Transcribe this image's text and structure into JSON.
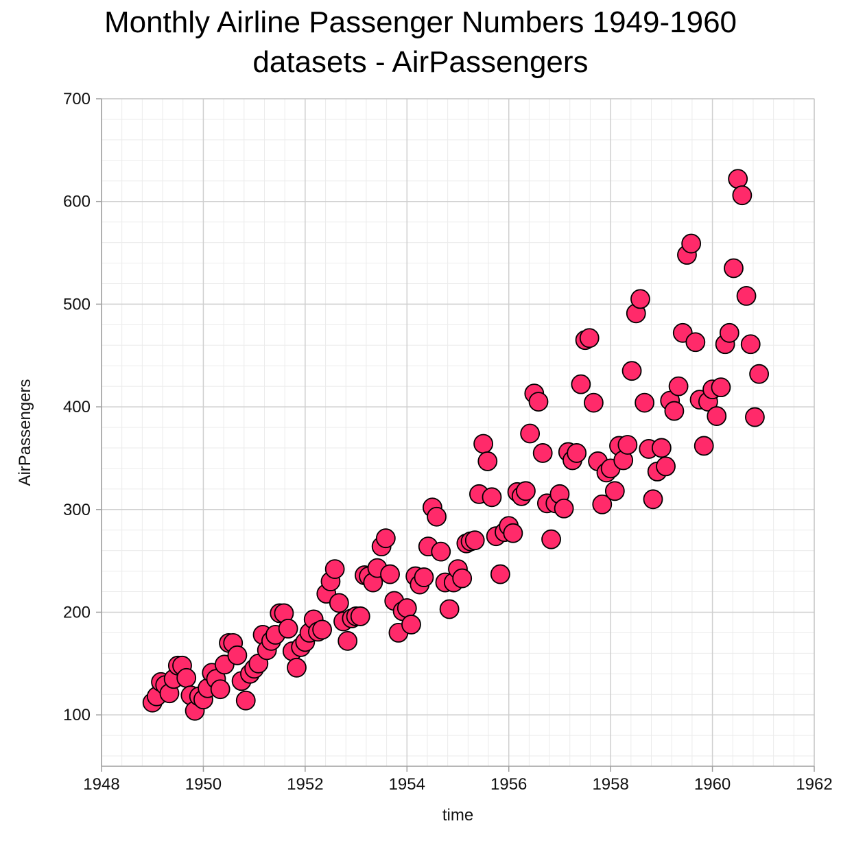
{
  "chart_data": {
    "type": "scatter",
    "title": "Monthly Airline Passenger Numbers 1949-1960",
    "subtitle": "datasets - AirPassengers",
    "xlabel": "time",
    "ylabel": "AirPassengers",
    "xlim": [
      1948,
      1962
    ],
    "ylim": [
      50,
      700
    ],
    "xticks": [
      1948,
      1950,
      1952,
      1954,
      1956,
      1958,
      1960,
      1962
    ],
    "yticks": [
      100,
      200,
      300,
      400,
      500,
      600,
      700
    ],
    "grid": true,
    "marker_color": "#ff2a6a",
    "marker_edge_color": "#000000",
    "series": [
      {
        "x_start": 1949,
        "x_step": 0.0833333,
        "values": [
          112,
          118,
          132,
          129,
          121,
          135,
          148,
          148,
          136,
          119,
          104,
          118,
          115,
          126,
          141,
          135,
          125,
          149,
          170,
          170,
          158,
          133,
          114,
          140,
          145,
          150,
          178,
          163,
          172,
          178,
          199,
          199,
          184,
          162,
          146,
          166,
          171,
          180,
          193,
          181,
          183,
          218,
          230,
          242,
          209,
          191,
          172,
          194,
          196,
          196,
          236,
          235,
          229,
          243,
          264,
          272,
          237,
          211,
          180,
          201,
          204,
          188,
          235,
          227,
          234,
          264,
          302,
          293,
          259,
          229,
          203,
          229,
          242,
          233,
          267,
          269,
          270,
          315,
          364,
          347,
          312,
          274,
          237,
          278,
          284,
          277,
          317,
          313,
          318,
          374,
          413,
          405,
          355,
          306,
          271,
          306,
          315,
          301,
          356,
          348,
          355,
          422,
          465,
          467,
          404,
          347,
          305,
          336,
          340,
          318,
          362,
          348,
          363,
          435,
          491,
          505,
          404,
          359,
          310,
          337,
          360,
          342,
          406,
          396,
          420,
          472,
          548,
          559,
          463,
          407,
          362,
          405,
          417,
          391,
          419,
          461,
          472,
          535,
          622,
          606,
          508,
          461,
          390,
          432
        ]
      }
    ]
  }
}
